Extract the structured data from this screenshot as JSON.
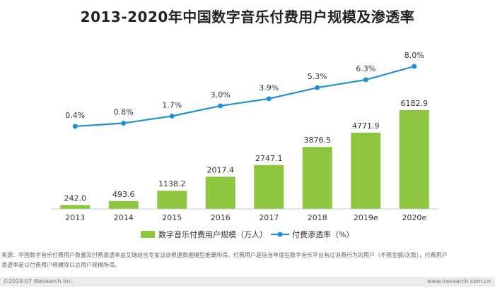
{
  "page": {
    "title": "2013-2020年中国数字音乐付费用户规模及渗透率",
    "footnote_line1": "来源：中国数字音乐付费用户数量及付费渗透率由艾瑞结合专家访谈根据数据模型推算所得。付费用户是指当年度在数字音乐平台有过消费行为的用户（不限金额/次数），付费用户",
    "footnote_line2": "渗透率是以付费用户规模除以总用户规模所得。",
    "copyright": "©2019.07 iResearch Inc.",
    "website": "www.iresearch.com.cn"
  },
  "chart_data": {
    "type": "bar",
    "categories": [
      "2013",
      "2014",
      "2015",
      "2016",
      "2017",
      "2018",
      "2019e",
      "2020e"
    ],
    "series": [
      {
        "name": "数字音乐付费用户规模（万人）",
        "type": "bar",
        "color": "#8dc63f",
        "values": [
          242.0,
          493.6,
          1138.2,
          2017.4,
          2747.1,
          3876.5,
          4771.9,
          6182.9
        ],
        "labels": [
          "242.0",
          "493.6",
          "1138.2",
          "2017.4",
          "2747.1",
          "3876.5",
          "4771.9",
          "6182.9"
        ]
      },
      {
        "name": "付费渗透率（%）",
        "type": "line",
        "color": "#1e90d8",
        "values": [
          0.4,
          0.8,
          1.7,
          3.0,
          3.9,
          5.3,
          6.3,
          8.0
        ],
        "labels": [
          "0.4%",
          "0.8%",
          "1.7%",
          "3.0%",
          "3.9%",
          "5.3%",
          "6.3%",
          "8.0%"
        ]
      }
    ],
    "legend_position": "bottom",
    "grid": false
  }
}
